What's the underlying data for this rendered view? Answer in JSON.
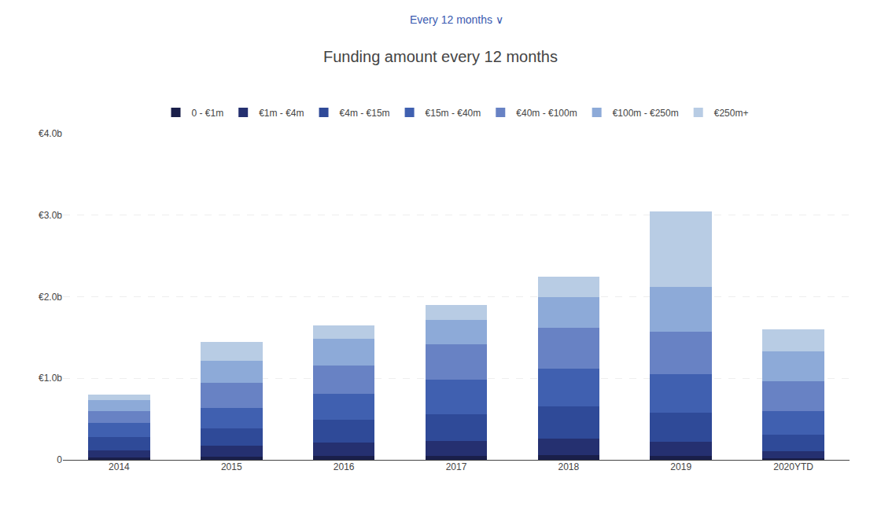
{
  "chart_data": {
    "type": "bar",
    "title": "Funding amount every 12 months",
    "subtitle": "Every 12 months ∨",
    "stacked": true,
    "categories": [
      "2014",
      "2015",
      "2016",
      "2017",
      "2018",
      "2019",
      "2020YTD"
    ],
    "series": [
      {
        "name": "0 - €1m",
        "color": "#1a1f4a",
        "values": [
          0.03,
          0.04,
          0.05,
          0.05,
          0.06,
          0.05,
          0.02
        ]
      },
      {
        "name": "€1m - €4m",
        "color": "#253070",
        "values": [
          0.09,
          0.13,
          0.16,
          0.18,
          0.2,
          0.17,
          0.09
        ]
      },
      {
        "name": "€4m - €15m",
        "color": "#2f4a98",
        "values": [
          0.16,
          0.22,
          0.28,
          0.33,
          0.4,
          0.36,
          0.2
        ]
      },
      {
        "name": "€15m - €40m",
        "color": "#4060b0",
        "values": [
          0.17,
          0.25,
          0.32,
          0.42,
          0.46,
          0.47,
          0.29
        ]
      },
      {
        "name": "€40m - €100m",
        "color": "#6882c4",
        "values": [
          0.15,
          0.3,
          0.35,
          0.44,
          0.5,
          0.52,
          0.36
        ]
      },
      {
        "name": "€100m - €250m",
        "color": "#8daad8",
        "values": [
          0.13,
          0.27,
          0.32,
          0.3,
          0.38,
          0.55,
          0.37
        ]
      },
      {
        "name": "€250m+",
        "color": "#b8cce4",
        "values": [
          0.07,
          0.24,
          0.17,
          0.18,
          0.25,
          0.93,
          0.27
        ]
      }
    ],
    "ylim": [
      0,
      4.0
    ],
    "yticks": [
      0,
      {
        "value": 1.0,
        "label": "€1.0b"
      },
      {
        "value": 2.0,
        "label": "€2.0b"
      },
      {
        "value": 3.0,
        "label": "€3.0b"
      },
      {
        "value": 4.0,
        "label": "€4.0b"
      }
    ],
    "grid": true,
    "legend": "top"
  }
}
